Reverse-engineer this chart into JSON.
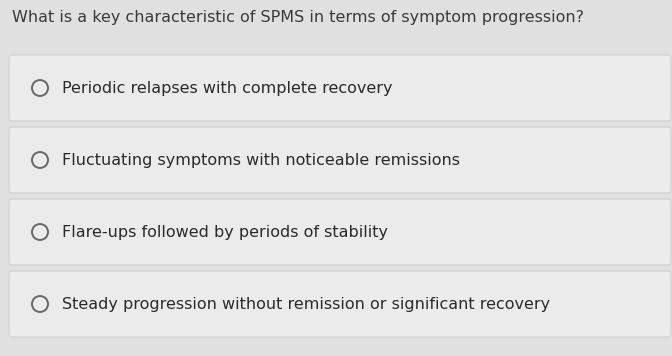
{
  "question": "What is a key characteristic of SPMS in terms of symptom progression?",
  "options": [
    "Periodic relapses with complete recovery",
    "Fluctuating symptoms with noticeable remissions",
    "Flare-ups followed by periods of stability",
    "Steady progression without remission or significant recovery"
  ],
  "background_color": "#e0e0e0",
  "card_color": "#ebebeb",
  "card_edge_color": "#d0d0d0",
  "question_color": "#3a3a3a",
  "option_color": "#2a2a2a",
  "question_fontsize": 11.5,
  "option_fontsize": 11.5,
  "circle_color": "#666666",
  "fig_width": 6.72,
  "fig_height": 3.56,
  "dpi": 100
}
